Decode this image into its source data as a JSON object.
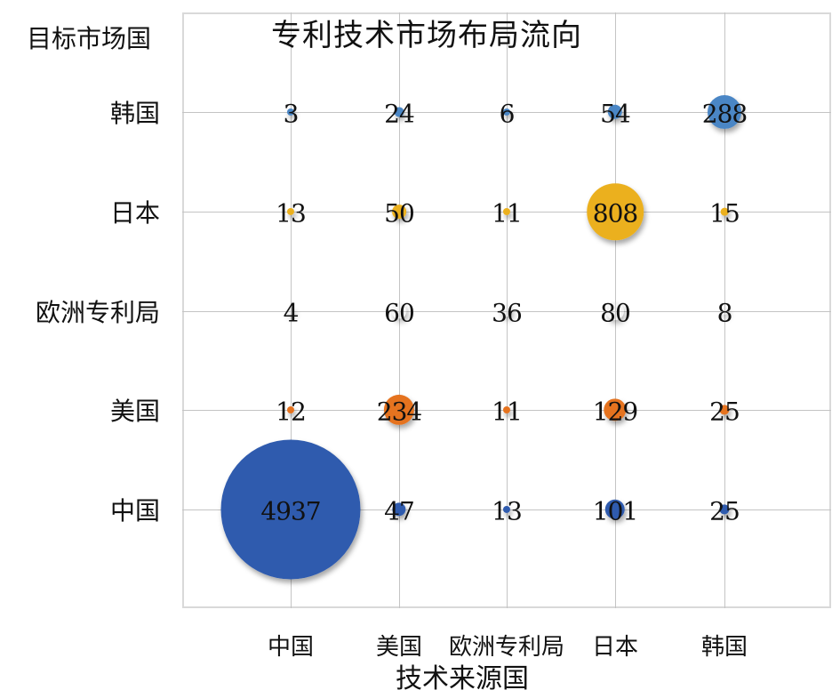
{
  "chart_data": {
    "type": "bubble",
    "title": "专利技术市场布局流向",
    "xlabel": "技术来源国",
    "ylabel": "目标市场国",
    "x_categories": [
      "中国",
      "美国",
      "欧洲专利局",
      "日本",
      "韩国"
    ],
    "y_categories": [
      "中国",
      "美国",
      "欧洲专利局",
      "日本",
      "韩国"
    ],
    "grid": true,
    "legend": "none",
    "series": [
      {
        "name": "韩国",
        "color": "#4A86C5",
        "values": [
          3,
          24,
          6,
          54,
          288
        ]
      },
      {
        "name": "日本",
        "color": "#EBB01E",
        "values": [
          13,
          50,
          11,
          808,
          15
        ]
      },
      {
        "name": "欧洲专利局",
        "color": "#D0D0D0",
        "values": [
          4,
          60,
          36,
          80,
          8
        ]
      },
      {
        "name": "美国",
        "color": "#E5731F",
        "values": [
          12,
          234,
          11,
          129,
          25
        ]
      },
      {
        "name": "中国",
        "color": "#2F5BAE",
        "values": [
          4937,
          47,
          13,
          101,
          25
        ]
      }
    ]
  },
  "labels": {
    "title": "专利技术市场布局流向",
    "y_axis_title": "目标市场国",
    "x_axis_title": "技术来源国",
    "y_ticks": [
      "韩国",
      "日本",
      "欧洲专利局",
      "美国",
      "中国"
    ],
    "x_ticks": [
      "中国",
      "美国",
      "欧洲专利局",
      "日本",
      "韩国"
    ]
  }
}
